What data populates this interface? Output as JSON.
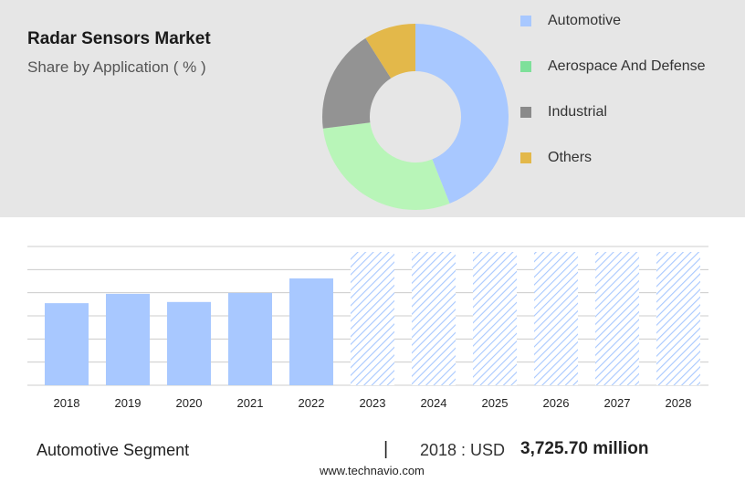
{
  "header": {
    "title": "Radar Sensors Market",
    "subtitle": "Share by Application ( % )"
  },
  "colors": {
    "panel_bg": "#e6e6e6",
    "bar_actual": "#a8c8ff",
    "bar_forecast_hatch": "#a8c8ff",
    "grid": "#cccccc"
  },
  "chart_data": [
    {
      "type": "pie",
      "variant": "donut",
      "title": "Share by Application ( % )",
      "legend_position": "right",
      "slices": [
        {
          "label": "Automotive",
          "value": 44,
          "color": "#a8c8ff"
        },
        {
          "label": "Aerospace And Defense",
          "value": 29,
          "color": "#b8f5b8"
        },
        {
          "label": "Industrial",
          "value": 18,
          "color": "#939393"
        },
        {
          "label": "Others",
          "value": 9,
          "color": "#e3b84a"
        }
      ],
      "legend": [
        {
          "label": "Automotive",
          "color": "#a8c8ff"
        },
        {
          "label": "Aerospace And Defense",
          "color": "#7ee09a"
        },
        {
          "label": "Industrial",
          "color": "#8a8a8a"
        },
        {
          "label": "Others",
          "color": "#e3b84a"
        }
      ]
    },
    {
      "type": "bar",
      "categories": [
        "2018",
        "2019",
        "2020",
        "2021",
        "2022",
        "2023",
        "2024",
        "2025",
        "2026",
        "2027",
        "2028"
      ],
      "values": [
        3725.7,
        4150,
        3780,
        4190,
        4850,
        null,
        null,
        null,
        null,
        null,
        null
      ],
      "forecast_categories": [
        "2023",
        "2024",
        "2025",
        "2026",
        "2027",
        "2028"
      ],
      "ylim": [
        0,
        6300
      ],
      "grid": true,
      "ytick_labels_shown": false
    }
  ],
  "footer": {
    "segment_label": "Automotive Segment",
    "divider": "|",
    "year_text": "2018 : USD",
    "value_text": "3,725.70 million",
    "url": "www.technavio.com"
  }
}
